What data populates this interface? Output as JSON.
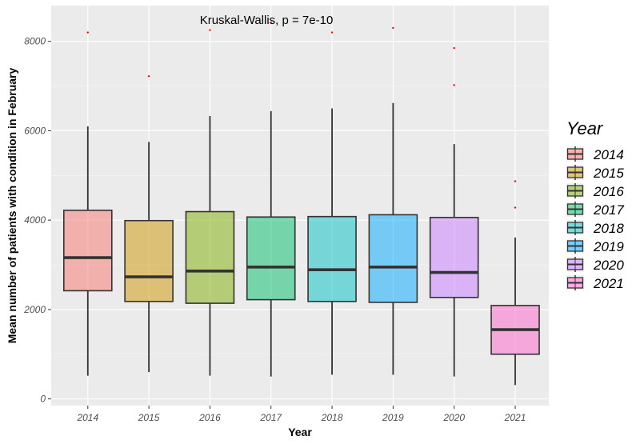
{
  "chart_data": {
    "type": "boxplot",
    "annotation": "Kruskal-Wallis, p = 7e-10",
    "xlabel": "Year",
    "ylabel": "Mean number of patients with condition in February",
    "ylim": [
      -150,
      8800
    ],
    "yticks": [
      0,
      2000,
      4000,
      6000,
      8000
    ],
    "grid": true,
    "legend": {
      "title": "Year",
      "position": "right"
    },
    "categories": [
      "2014",
      "2015",
      "2016",
      "2017",
      "2018",
      "2019",
      "2020",
      "2021"
    ],
    "colors": [
      "#F8766D",
      "#CD9600",
      "#7CAE00",
      "#00BE67",
      "#00BFC4",
      "#00A9FF",
      "#C77CFF",
      "#FF61CC"
    ],
    "boxes": [
      {
        "min": 520,
        "q1": 2420,
        "median": 3160,
        "q3": 4220,
        "max": 6100,
        "outliers": [
          8200
        ]
      },
      {
        "min": 600,
        "q1": 2180,
        "median": 2730,
        "q3": 3990,
        "max": 5750,
        "outliers": [
          7220
        ]
      },
      {
        "min": 520,
        "q1": 2140,
        "median": 2860,
        "q3": 4190,
        "max": 6330,
        "outliers": [
          8250
        ]
      },
      {
        "min": 500,
        "q1": 2220,
        "median": 2950,
        "q3": 4070,
        "max": 6440,
        "outliers": [
          8420
        ]
      },
      {
        "min": 540,
        "q1": 2180,
        "median": 2890,
        "q3": 4080,
        "max": 6500,
        "outliers": [
          8200
        ]
      },
      {
        "min": 540,
        "q1": 2160,
        "median": 2950,
        "q3": 4120,
        "max": 6620,
        "outliers": [
          8300
        ]
      },
      {
        "min": 500,
        "q1": 2270,
        "median": 2830,
        "q3": 4060,
        "max": 5700,
        "outliers": [
          7850,
          7020
        ]
      },
      {
        "min": 310,
        "q1": 1000,
        "median": 1550,
        "q3": 2090,
        "max": 3610,
        "outliers": [
          4870,
          4280
        ]
      }
    ]
  }
}
